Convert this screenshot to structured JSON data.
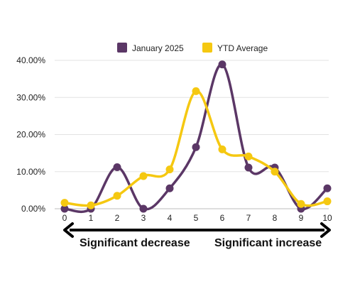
{
  "chart_data": {
    "type": "line",
    "x": [
      0,
      1,
      2,
      3,
      4,
      5,
      6,
      7,
      8,
      9,
      10
    ],
    "xlim": [
      0,
      10
    ],
    "ylim": [
      0,
      40
    ],
    "y_ticks": [
      "0.00%",
      "10.00%",
      "20.00%",
      "30.00%",
      "40.00%"
    ],
    "x_ticks": [
      "0",
      "1",
      "2",
      "3",
      "4",
      "5",
      "6",
      "7",
      "8",
      "9",
      "10"
    ],
    "grid": true,
    "smooth": true,
    "legend_position": "top-center",
    "series": [
      {
        "name": "January 2025",
        "color": "#5b3766",
        "values": [
          0,
          0,
          11.2,
          0,
          5.5,
          16.6,
          38.9,
          11.1,
          11.1,
          0,
          5.5
        ]
      },
      {
        "name": "YTD Average",
        "color": "#f5c811",
        "values": [
          1.6,
          0.9,
          3.5,
          8.8,
          10.6,
          31.7,
          16.0,
          14.1,
          10.0,
          1.3,
          2.0
        ]
      }
    ],
    "annotations": {
      "left": "Significant decrease",
      "right": "Significant increase"
    }
  }
}
